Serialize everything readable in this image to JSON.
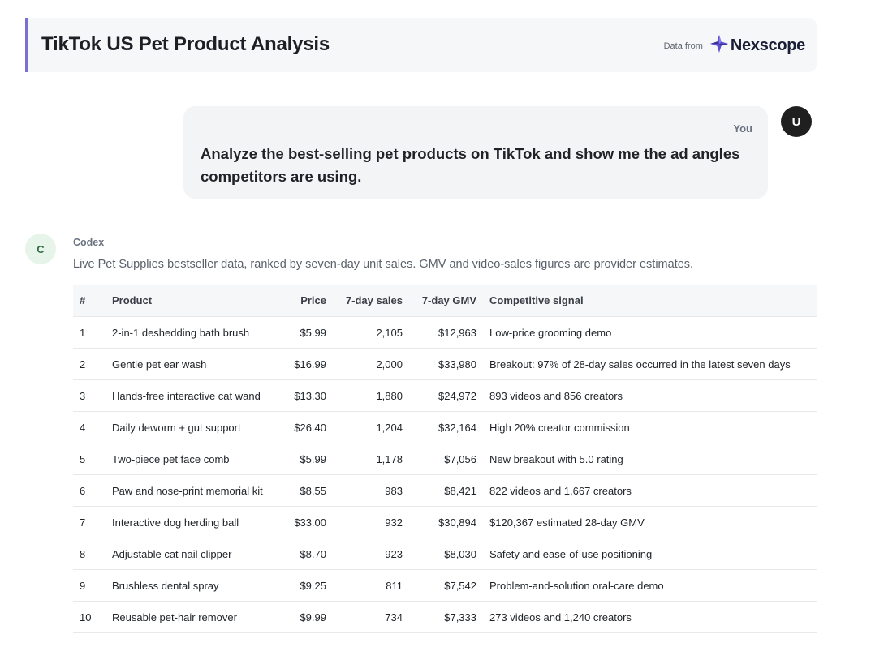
{
  "header": {
    "title": "TikTok US Pet Product Analysis",
    "data_from_label": "Data from",
    "brand_name": "Nexscope",
    "brand_color": "#5b4fd0"
  },
  "user_message": {
    "author": "You",
    "avatar_letter": "U",
    "text": "Analyze the best-selling pet products on TikTok and show me the ad angles competitors are using."
  },
  "assistant": {
    "author": "Codex",
    "avatar_letter": "C",
    "intro": "Live Pet Supplies bestseller data, ranked by seven-day unit sales. GMV and video-sales figures are provider estimates."
  },
  "table": {
    "columns": [
      "#",
      "Product",
      "Price",
      "7-day sales",
      "7-day GMV",
      "Competitive signal"
    ],
    "rows": [
      [
        "1",
        "2-in-1 deshedding bath brush",
        "$5.99",
        "2,105",
        "$12,963",
        "Low-price grooming demo"
      ],
      [
        "2",
        "Gentle pet ear wash",
        "$16.99",
        "2,000",
        "$33,980",
        "Breakout: 97% of 28-day sales occurred in the latest seven days"
      ],
      [
        "3",
        "Hands-free interactive cat wand",
        "$13.30",
        "1,880",
        "$24,972",
        "893 videos and 856 creators"
      ],
      [
        "4",
        "Daily deworm + gut support",
        "$26.40",
        "1,204",
        "$32,164",
        "High 20% creator commission"
      ],
      [
        "5",
        "Two-piece pet face comb",
        "$5.99",
        "1,178",
        "$7,056",
        "New breakout with 5.0 rating"
      ],
      [
        "6",
        "Paw and nose-print memorial kit",
        "$8.55",
        "983",
        "$8,421",
        "822 videos and 1,667 creators"
      ],
      [
        "7",
        "Interactive dog herding ball",
        "$33.00",
        "932",
        "$30,894",
        "$120,367 estimated 28-day GMV"
      ],
      [
        "8",
        "Adjustable cat nail clipper",
        "$8.70",
        "923",
        "$8,030",
        "Safety and ease-of-use positioning"
      ],
      [
        "9",
        "Brushless dental spray",
        "$9.25",
        "811",
        "$7,542",
        "Problem-and-solution oral-care demo"
      ],
      [
        "10",
        "Reusable pet-hair remover",
        "$9.99",
        "734",
        "$7,333",
        "273 videos and 1,240 creators"
      ]
    ]
  }
}
